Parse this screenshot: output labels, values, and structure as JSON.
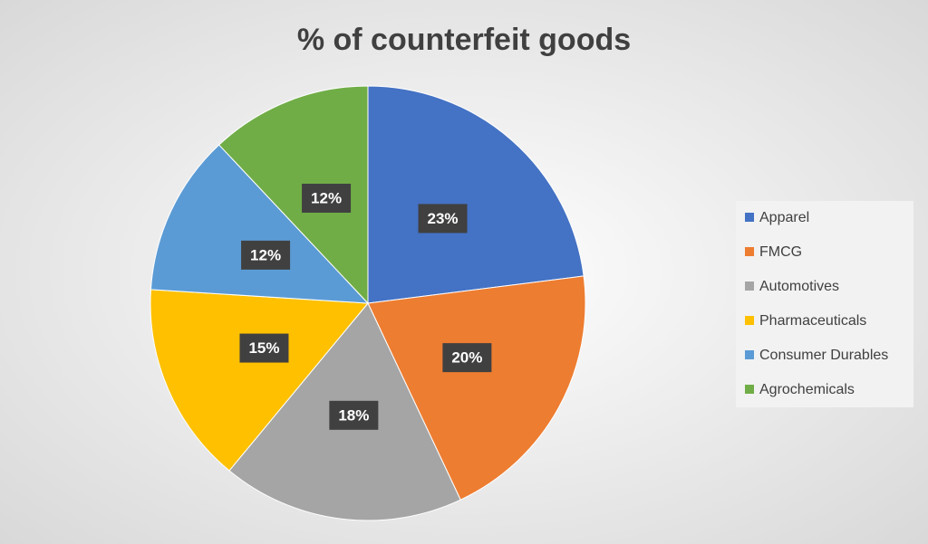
{
  "chart_data": {
    "type": "pie",
    "title": "% of counterfeit goods",
    "categories": [
      "Apparel",
      "FMCG",
      "Automotives",
      "Pharmaceuticals",
      "Consumer Durables",
      "Agrochemicals"
    ],
    "values": [
      23,
      20,
      18,
      15,
      12,
      12
    ],
    "value_labels": [
      "23%",
      "20%",
      "18%",
      "15%",
      "12%",
      "12%"
    ],
    "colors": [
      "#4472c4",
      "#ed7d31",
      "#a5a5a5",
      "#ffc000",
      "#5b9bd5",
      "#70ad47"
    ],
    "legend": "right"
  }
}
